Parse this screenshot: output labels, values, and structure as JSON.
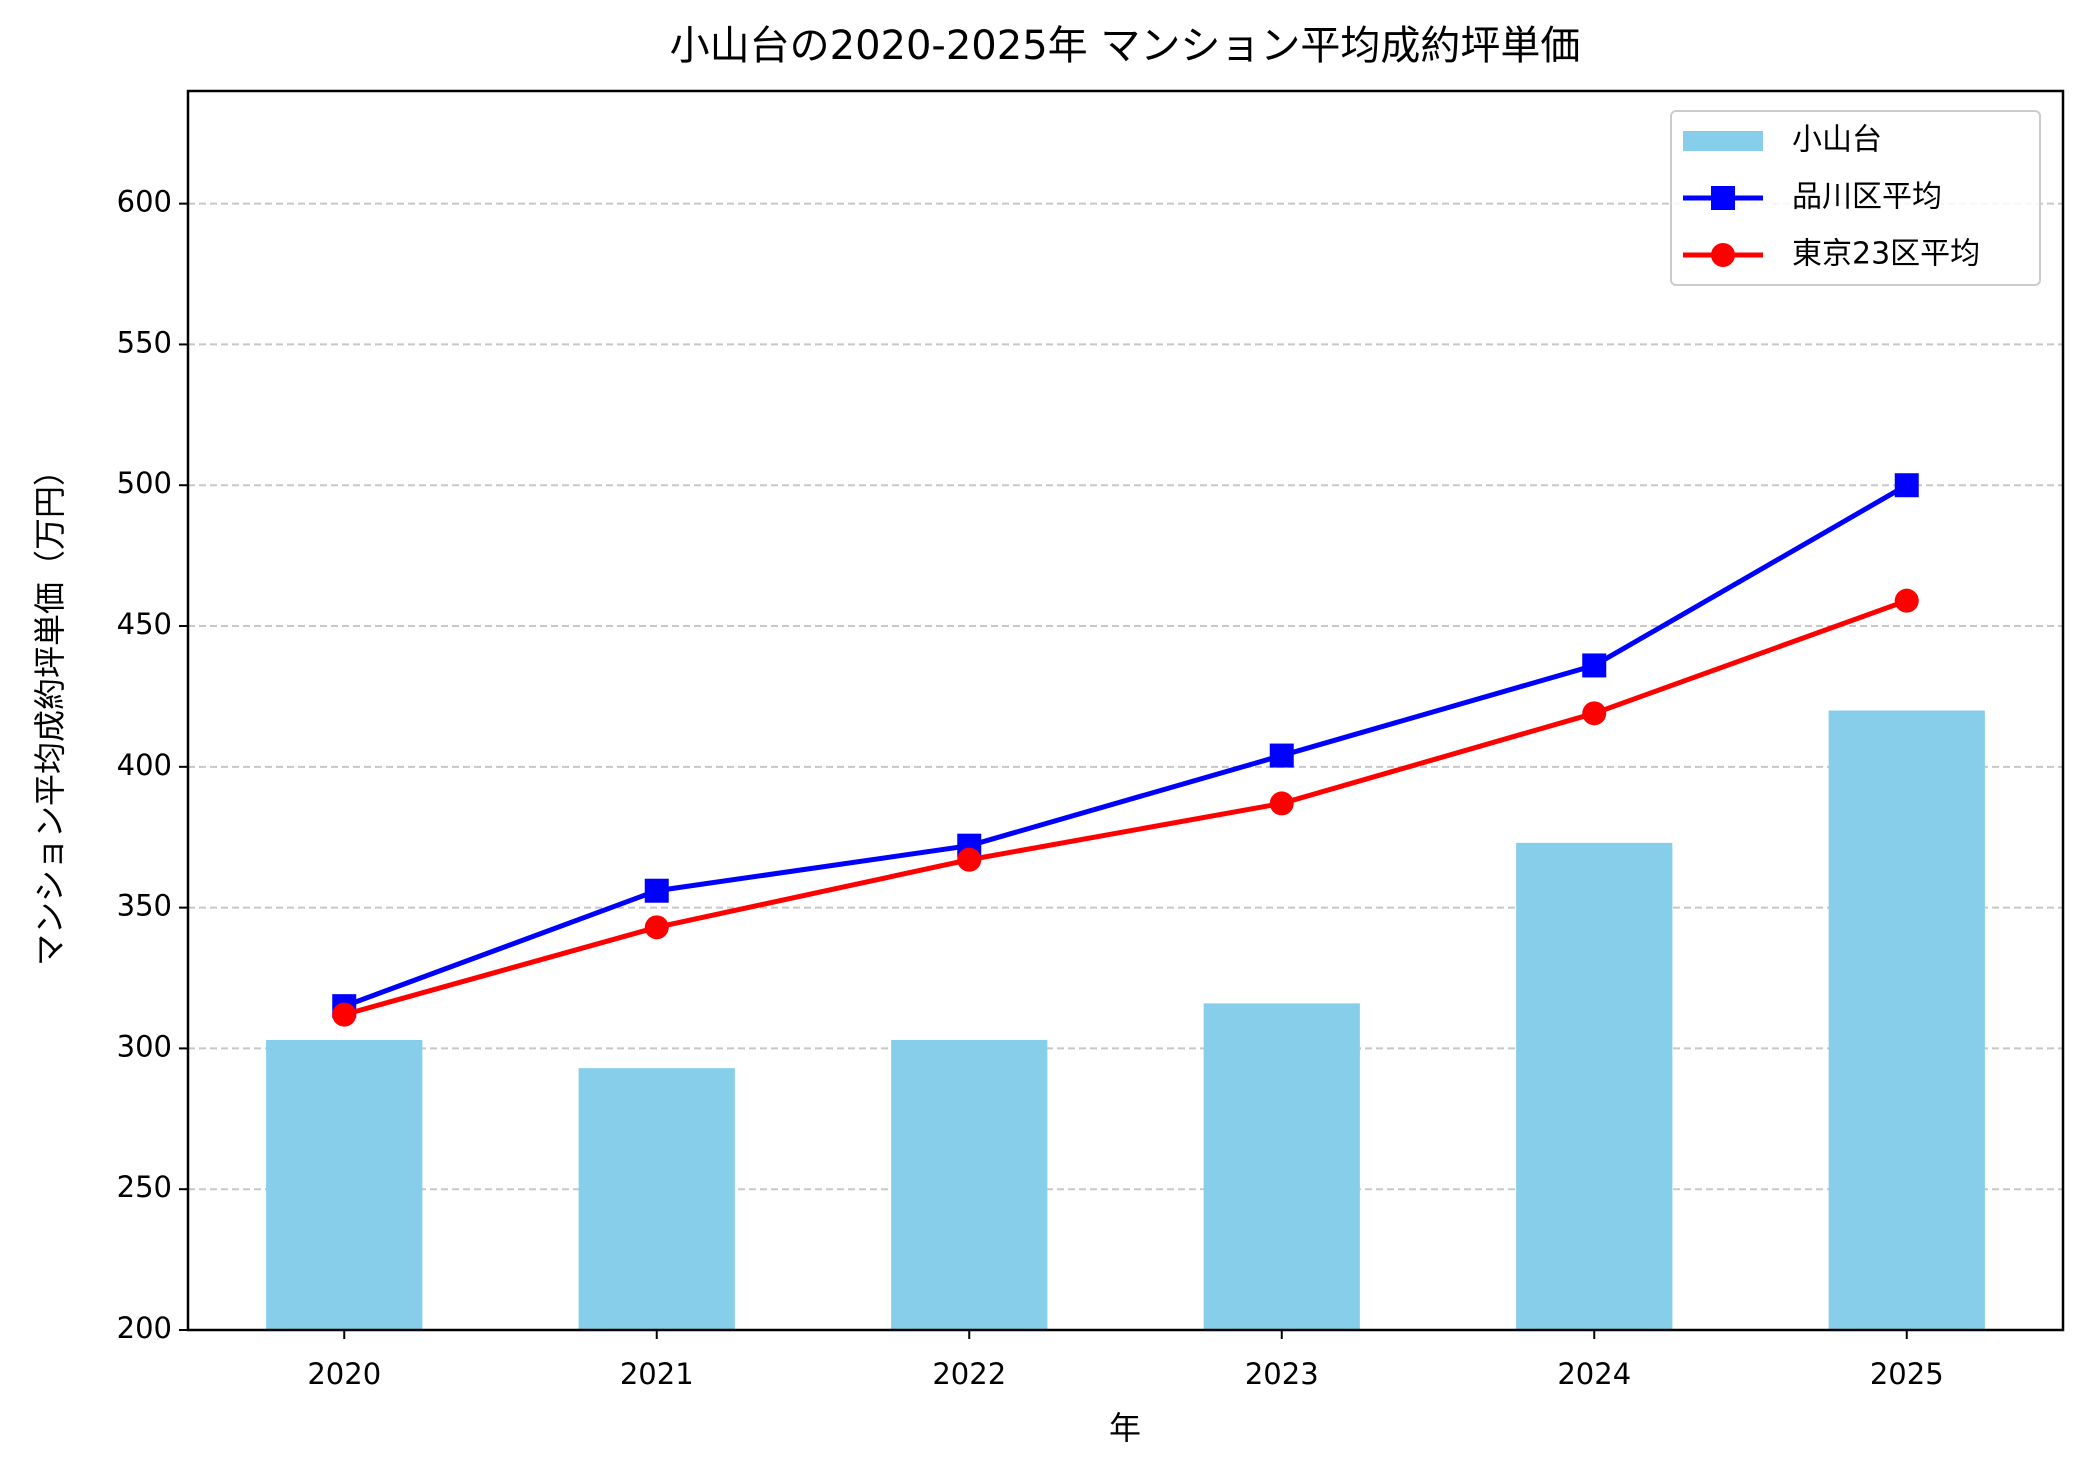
{
  "chart_data": {
    "type": "combo",
    "title": "小山台の2020-2025年 マンション平均成約坪単価",
    "x_label": "年",
    "y_label": "マンション平均成約坪単価（万円）",
    "categories": [
      "2020",
      "2021",
      "2022",
      "2023",
      "2024",
      "2025"
    ],
    "series": [
      {
        "name": "小山台",
        "type": "bar",
        "color": "#87ceeb",
        "values": [
          303,
          293,
          303,
          316,
          373,
          420
        ]
      },
      {
        "name": "品川区平均",
        "type": "line",
        "marker": "square",
        "color": "#0000ff",
        "values": [
          315,
          356,
          372,
          404,
          436,
          500
        ]
      },
      {
        "name": "東京23区平均",
        "type": "line",
        "marker": "circle",
        "color": "#ff0000",
        "values": [
          312,
          343,
          367,
          387,
          419,
          459
        ]
      }
    ],
    "ylim": [
      200,
      640
    ],
    "yticks": [
      200,
      250,
      300,
      350,
      400,
      450,
      500,
      550,
      600
    ],
    "grid": true,
    "legend": "upper right"
  }
}
